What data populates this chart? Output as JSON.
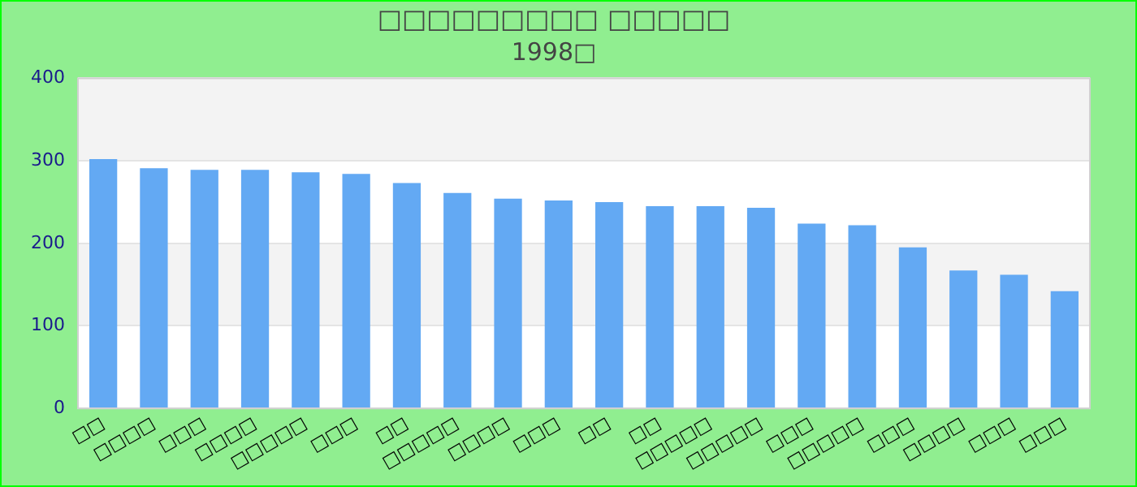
{
  "chart_data": {
    "type": "bar",
    "title": "□□□□□□□□□ □□□□□",
    "subtitle": "1998□",
    "categories": [
      "□□",
      "□□□□",
      "□□□",
      "□□□□",
      "□□□□□",
      "□□□",
      "□□",
      "□□□□□",
      "□□□□",
      "□□□",
      "□□",
      "□□",
      "□□□□□",
      "□□□□□",
      "□□□",
      "□□□□□",
      "□□□",
      "□□□□",
      "□□□",
      "□□□"
    ],
    "values": [
      302,
      291,
      289,
      289,
      286,
      284,
      273,
      261,
      254,
      252,
      250,
      245,
      245,
      243,
      224,
      222,
      195,
      167,
      162,
      142
    ],
    "color": "#63a9f3",
    "ylim": [
      0,
      400
    ],
    "yticks": [
      0,
      100,
      200,
      300,
      400
    ],
    "grid": true
  }
}
